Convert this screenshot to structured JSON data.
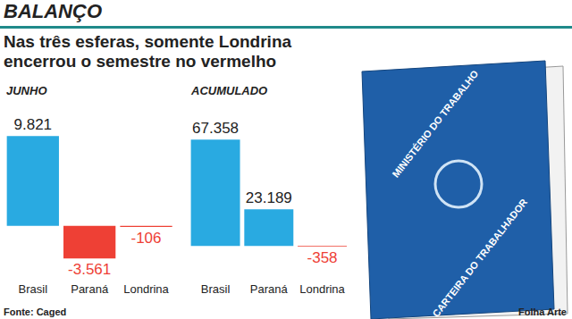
{
  "chart_data": [
    {
      "type": "bar",
      "title": "JUNHO",
      "categories": [
        "Brasil",
        "Paraná",
        "Londrina"
      ],
      "values": [
        9821,
        -3561,
        -106
      ],
      "value_labels": [
        "9.821",
        "-3.561",
        "-106"
      ],
      "colors": [
        "#29aae1",
        "#ee4035",
        "#ee4035"
      ],
      "ylim": [
        -6000,
        12500
      ],
      "grid": false,
      "data_labels": true,
      "tick_labels": "x"
    },
    {
      "type": "bar",
      "title": "ACUMULADO",
      "categories": [
        "Brasil",
        "Paraná",
        "Londrina"
      ],
      "values": [
        67358,
        23189,
        -358
      ],
      "value_labels": [
        "67.358",
        "23.189",
        "-358"
      ],
      "colors": [
        "#29aae1",
        "#29aae1",
        "#ee4035"
      ],
      "ylim": [
        -22000,
        85000
      ],
      "grid": false,
      "data_labels": true,
      "tick_labels": "x"
    }
  ],
  "page": {
    "title": "BALANÇO",
    "subtitle": "Nas três esferas, somente Londrina encerrou o semestre no vermelho",
    "source": "Fonte: Caged",
    "credit": "Folha Arte",
    "booklet": {
      "top_text": "MINISTÉRIO DO TRABALHO",
      "bottom_text": "CARTEIRA DO TRABALHADOR"
    }
  }
}
